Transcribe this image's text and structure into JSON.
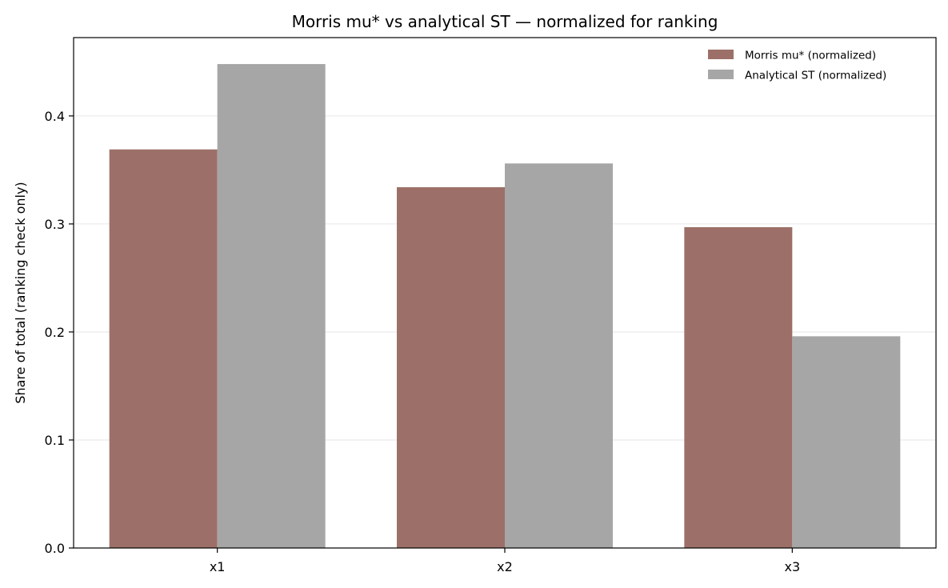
{
  "chart_data": {
    "type": "bar",
    "title": "Morris mu* vs analytical ST — normalized for ranking",
    "xlabel": "",
    "ylabel": "Share of total (ranking check only)",
    "categories": [
      "x1",
      "x2",
      "x3"
    ],
    "series": [
      {
        "name": "Morris mu* (normalized)",
        "values": [
          0.369,
          0.334,
          0.297
        ],
        "color": "#9c7068"
      },
      {
        "name": "Analytical ST (normalized)",
        "values": [
          0.448,
          0.356,
          0.196
        ],
        "color": "#a6a6a6"
      }
    ],
    "ylim": [
      0,
      0.4725
    ],
    "yticks": [
      "0.0",
      "0.1",
      "0.2",
      "0.3",
      "0.4"
    ],
    "ytick_values": [
      0,
      0.1,
      0.2,
      0.3,
      0.4
    ],
    "grid": "horizontal",
    "legend_position": "top-right"
  }
}
